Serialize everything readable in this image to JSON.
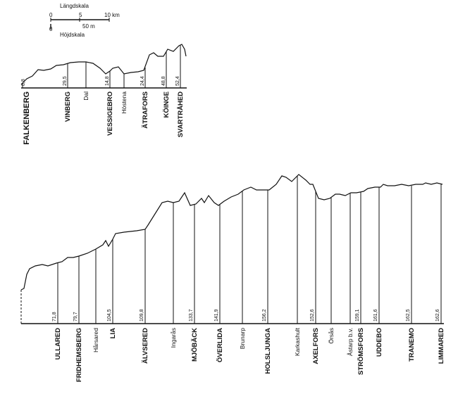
{
  "scale": {
    "length_title": "Längdskala",
    "height_title": "Höjdskala",
    "length_ticks": [
      "0",
      "5",
      "10 km"
    ],
    "height_ticks": [
      "0",
      "50 m"
    ]
  },
  "upper_profile": {
    "origin_label": "FALKENBERG",
    "stations": [
      {
        "name": "VINBERG",
        "km": "29,5",
        "bold": true
      },
      {
        "name": "Dal",
        "km": "",
        "bold": false
      },
      {
        "name": "VESSIGEBRO",
        "km": "14,8",
        "bold": true
      },
      {
        "name": "Höstena",
        "km": "",
        "bold": false
      },
      {
        "name": "ÄTRAFORS",
        "km": "24,4",
        "bold": true
      },
      {
        "name": "KÖINGE",
        "km": "48,8",
        "bold": true
      },
      {
        "name": "SVARTRÅHED",
        "km": "52,4",
        "bold": true
      }
    ],
    "origin_km": "8,8"
  },
  "lower_profile": {
    "stations": [
      {
        "name": "ULLARED",
        "km": "71,8",
        "bold": true
      },
      {
        "name": "FRIDHEMSBERG",
        "km": "79,7",
        "bold": true
      },
      {
        "name": "Hårsared",
        "km": "",
        "bold": false
      },
      {
        "name": "LIA",
        "km": "104,5",
        "bold": true
      },
      {
        "name": "ÄLVSERED",
        "km": "109,8",
        "bold": true
      },
      {
        "name": "Ingarås",
        "km": "",
        "bold": false
      },
      {
        "name": "MJÖBÄCK",
        "km": "133,7",
        "bold": true
      },
      {
        "name": "ÖVERLIDA",
        "km": "141,9",
        "bold": true
      },
      {
        "name": "Brunarp",
        "km": "",
        "bold": false
      },
      {
        "name": "HOLSLJUNGA",
        "km": "156,2",
        "bold": true
      },
      {
        "name": "Karkashult",
        "km": "",
        "bold": false
      },
      {
        "name": "AXELFORS",
        "km": "152,6",
        "bold": true
      },
      {
        "name": "Örsås",
        "km": "",
        "bold": false
      },
      {
        "name": "Åstarp b.v.",
        "km": "",
        "bold": false
      },
      {
        "name": "STRÖMSFORS",
        "km": "159,1",
        "bold": true
      },
      {
        "name": "UDDEBO",
        "km": "161,6",
        "bold": true
      },
      {
        "name": "TRANEMO",
        "km": "162,5",
        "bold": true
      },
      {
        "name": "LIMMARED",
        "km": "162,6",
        "bold": true
      }
    ]
  }
}
